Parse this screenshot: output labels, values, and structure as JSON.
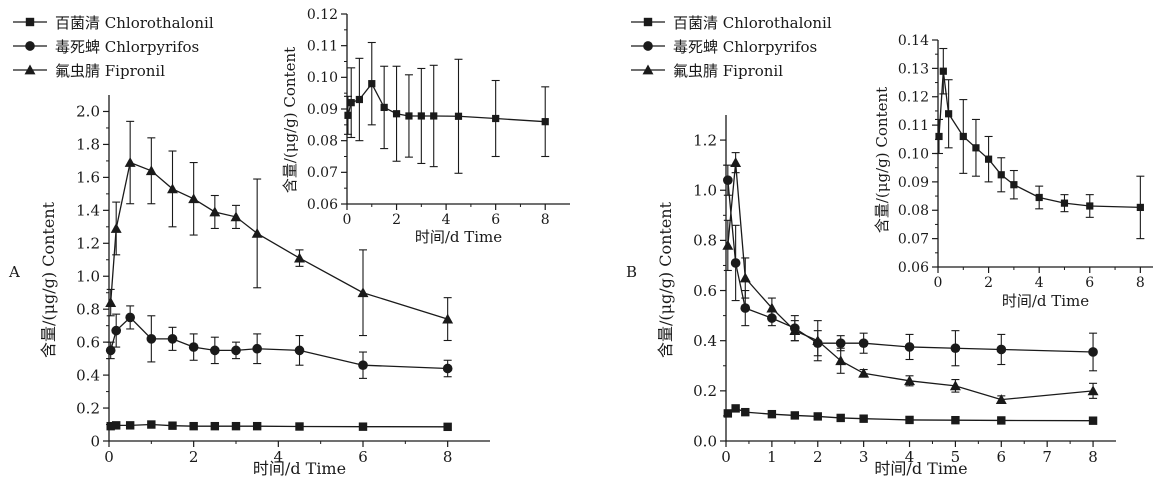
{
  "legend_entries": [
    "百菌清 Chlorothalonil",
    "毒死蜱 Chlorpyrifos",
    "氟虫腈 Fipronil"
  ],
  "colors": {
    "ink": "#1a1a1a",
    "background": "#ffffff"
  },
  "chart_data": [
    {
      "panel": "A",
      "role": "main",
      "type": "line",
      "error_bars": true,
      "legend_position": "top-left",
      "xlabel": "时间/d Time",
      "ylabel": "含量/(μg/g) Content",
      "xlim": [
        0,
        9
      ],
      "ylim": [
        0,
        2.1
      ],
      "xticks": [
        0,
        2,
        4,
        6,
        8
      ],
      "yticks": [
        0,
        0.2,
        0.4,
        0.6,
        0.8,
        1.0,
        1.2,
        1.4,
        1.6,
        1.8,
        2.0
      ],
      "xtick_labels": [
        "0",
        "2",
        "4",
        "6",
        "8"
      ],
      "ytick_labels": [
        "0",
        "0.2",
        "0.4",
        "0.6",
        "0.8",
        "1.0",
        "1.2",
        "1.4",
        "1.6",
        "1.8",
        "2.0"
      ],
      "series": [
        {
          "name": "百菌清 Chlorothalonil",
          "marker": "square",
          "x": [
            0.04,
            0.17,
            0.5,
            1,
            1.5,
            2,
            2.5,
            3,
            3.5,
            4.5,
            6,
            8
          ],
          "y": [
            0.09,
            0.095,
            0.095,
            0.1,
            0.093,
            0.09,
            0.09,
            0.09,
            0.09,
            0.088,
            0.087,
            0.086
          ],
          "err": [
            0,
            0,
            0,
            0,
            0,
            0,
            0,
            0,
            0,
            0,
            0,
            0
          ]
        },
        {
          "name": "毒死蜱 Chlorpyrifos",
          "marker": "circle",
          "x": [
            0.04,
            0.17,
            0.5,
            1,
            1.5,
            2,
            2.5,
            3,
            3.5,
            4.5,
            6,
            8
          ],
          "y": [
            0.55,
            0.67,
            0.75,
            0.62,
            0.62,
            0.57,
            0.55,
            0.55,
            0.56,
            0.55,
            0.46,
            0.44
          ],
          "err": [
            0.05,
            0.1,
            0.07,
            0.14,
            0.07,
            0.08,
            0.08,
            0.05,
            0.09,
            0.09,
            0.08,
            0.05
          ]
        },
        {
          "name": "氟虫腈 Fipronil",
          "marker": "triangle",
          "x": [
            0.04,
            0.17,
            0.5,
            1,
            1.5,
            2,
            2.5,
            3,
            3.5,
            4.5,
            6,
            8
          ],
          "y": [
            0.84,
            1.29,
            1.69,
            1.64,
            1.53,
            1.47,
            1.39,
            1.36,
            1.26,
            1.11,
            0.9,
            0.74
          ],
          "err": [
            0.08,
            0.16,
            0.25,
            0.2,
            0.23,
            0.22,
            0.1,
            0.07,
            0.33,
            0.05,
            0.26,
            0.13
          ]
        }
      ]
    },
    {
      "panel": "A",
      "role": "inset",
      "type": "line",
      "error_bars": true,
      "xlabel": "时间/d Time",
      "ylabel": "含量/(μg/g) Content",
      "xlim": [
        0,
        9
      ],
      "ylim": [
        0.06,
        0.12
      ],
      "xticks": [
        0,
        2,
        4,
        6,
        8
      ],
      "yticks": [
        0.06,
        0.07,
        0.08,
        0.09,
        0.1,
        0.11,
        0.12
      ],
      "xtick_labels": [
        "0",
        "2",
        "4",
        "6",
        "8"
      ],
      "ytick_labels": [
        "0.06",
        "0.07",
        "0.08",
        "0.09",
        "0.10",
        "0.11",
        "0.12"
      ],
      "series": [
        {
          "name": "百菌清 Chlorothalonil",
          "marker": "square",
          "x": [
            0.04,
            0.17,
            0.5,
            1,
            1.5,
            2,
            2.5,
            3,
            3.5,
            4.5,
            6,
            8
          ],
          "y": [
            0.088,
            0.092,
            0.093,
            0.098,
            0.0905,
            0.0885,
            0.0878,
            0.0878,
            0.0878,
            0.0877,
            0.087,
            0.086
          ],
          "err": [
            0.006,
            0.011,
            0.013,
            0.013,
            0.013,
            0.015,
            0.013,
            0.015,
            0.016,
            0.018,
            0.012,
            0.011
          ]
        }
      ]
    },
    {
      "panel": "B",
      "role": "main",
      "type": "line",
      "error_bars": true,
      "legend_position": "top-left",
      "xlabel": "时间/d Time",
      "ylabel": "含量/(μg/g) Content",
      "xlim": [
        0,
        8.5
      ],
      "ylim": [
        0,
        1.3
      ],
      "xticks": [
        0,
        1,
        2,
        3,
        4,
        5,
        6,
        7,
        8
      ],
      "yticks": [
        0,
        0.2,
        0.4,
        0.6,
        0.8,
        1.0,
        1.2
      ],
      "xtick_labels": [
        "0",
        "1",
        "2",
        "3",
        "4",
        "5",
        "6",
        "7",
        "8"
      ],
      "ytick_labels": [
        "0.0",
        "0.2",
        "0.4",
        "0.6",
        "0.8",
        "1.0",
        "1.2"
      ],
      "series": [
        {
          "name": "百菌清 Chlorothalonil",
          "marker": "square",
          "x": [
            0.04,
            0.21,
            0.42,
            1,
            1.5,
            2,
            2.5,
            3,
            4,
            5,
            6,
            8
          ],
          "y": [
            0.11,
            0.13,
            0.115,
            0.107,
            0.102,
            0.098,
            0.092,
            0.089,
            0.084,
            0.083,
            0.082,
            0.081
          ],
          "err": [
            0,
            0,
            0,
            0,
            0,
            0,
            0,
            0,
            0,
            0,
            0,
            0
          ]
        },
        {
          "name": "毒死蜱 Chlorpyrifos",
          "marker": "circle",
          "x": [
            0.04,
            0.21,
            0.42,
            1,
            1.5,
            2,
            2.5,
            3,
            4,
            5,
            6,
            8
          ],
          "y": [
            1.04,
            0.71,
            0.53,
            0.49,
            0.45,
            0.39,
            0.39,
            0.39,
            0.375,
            0.37,
            0.365,
            0.355
          ],
          "err": [
            0.06,
            0.15,
            0.07,
            0.03,
            0.05,
            0.05,
            0.03,
            0.04,
            0.05,
            0.07,
            0.06,
            0.075
          ]
        },
        {
          "name": "氟虫腈 Fipronil",
          "marker": "triangle",
          "x": [
            0.04,
            0.21,
            0.42,
            1,
            1.5,
            2,
            2.5,
            3,
            4,
            5,
            6,
            8
          ],
          "y": [
            0.78,
            1.11,
            0.65,
            0.53,
            0.44,
            0.4,
            0.32,
            0.27,
            0.24,
            0.22,
            0.165,
            0.2
          ],
          "err": [
            0.1,
            0.04,
            0.08,
            0.04,
            0.04,
            0.08,
            0.05,
            0.015,
            0.02,
            0.025,
            0.015,
            0.03
          ]
        }
      ]
    },
    {
      "panel": "B",
      "role": "inset",
      "type": "line",
      "error_bars": true,
      "xlabel": "时间/d Time",
      "ylabel": "含量/(μg/g) Content",
      "xlim": [
        0,
        8.5
      ],
      "ylim": [
        0.06,
        0.14
      ],
      "xticks": [
        0,
        2,
        4,
        6,
        8
      ],
      "yticks": [
        0.06,
        0.07,
        0.08,
        0.09,
        0.1,
        0.11,
        0.12,
        0.13,
        0.14
      ],
      "xtick_labels": [
        "0",
        "2",
        "4",
        "6",
        "8"
      ],
      "ytick_labels": [
        "0.06",
        "0.07",
        "0.08",
        "0.09",
        "0.10",
        "0.11",
        "0.12",
        "0.13",
        "0.14"
      ],
      "series": [
        {
          "name": "百菌清 Chlorothalonil",
          "marker": "square",
          "x": [
            0.04,
            0.21,
            0.42,
            1,
            1.5,
            2,
            2.5,
            3,
            4,
            5,
            6,
            8
          ],
          "y": [
            0.106,
            0.129,
            0.114,
            0.106,
            0.102,
            0.098,
            0.0925,
            0.089,
            0.0845,
            0.0825,
            0.0815,
            0.081
          ],
          "err": [
            0.006,
            0.008,
            0.012,
            0.013,
            0.01,
            0.008,
            0.006,
            0.005,
            0.004,
            0.003,
            0.004,
            0.011
          ]
        }
      ]
    }
  ],
  "panel_labels": [
    "A",
    "B"
  ]
}
